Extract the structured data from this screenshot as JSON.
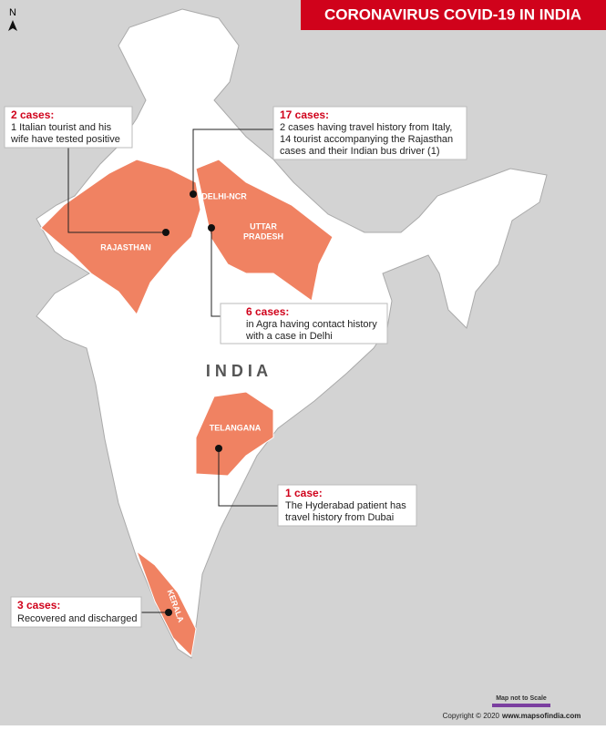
{
  "title": "CORONAVIRUS COVID-19 IN INDIA",
  "north": "N",
  "country_label": "I N D I A",
  "regions": [
    {
      "label": [
        "RAJASTHAN"
      ]
    },
    {
      "label": [
        "DELHI-NCR"
      ]
    },
    {
      "label": [
        "UTTAR",
        "PRADESH"
      ]
    },
    {
      "label": [
        "TELANGANA"
      ]
    },
    {
      "label": [
        "KERALA"
      ]
    }
  ],
  "callouts": [
    {
      "heading": "2 cases:",
      "lines": [
        "1 Italian tourist and his",
        "wife have tested positive"
      ]
    },
    {
      "heading": "17 cases:",
      "lines": [
        "2 cases having travel history from Italy,",
        "14 tourist accompanying the Rajasthan",
        "cases and their Indian bus driver (1)"
      ]
    },
    {
      "heading": "6 cases:",
      "lines": [
        "in Agra having contact history",
        "with a case in Delhi"
      ]
    },
    {
      "heading": "1 case:",
      "lines": [
        "The Hyderabad patient has",
        "travel history from Dubai"
      ]
    },
    {
      "heading": "3 cases:",
      "lines": [
        "Recovered and discharged"
      ]
    }
  ],
  "scale_note": "Map not to Scale",
  "copyright": "Copyright © 2020",
  "website": "www.mapsofindia.com"
}
